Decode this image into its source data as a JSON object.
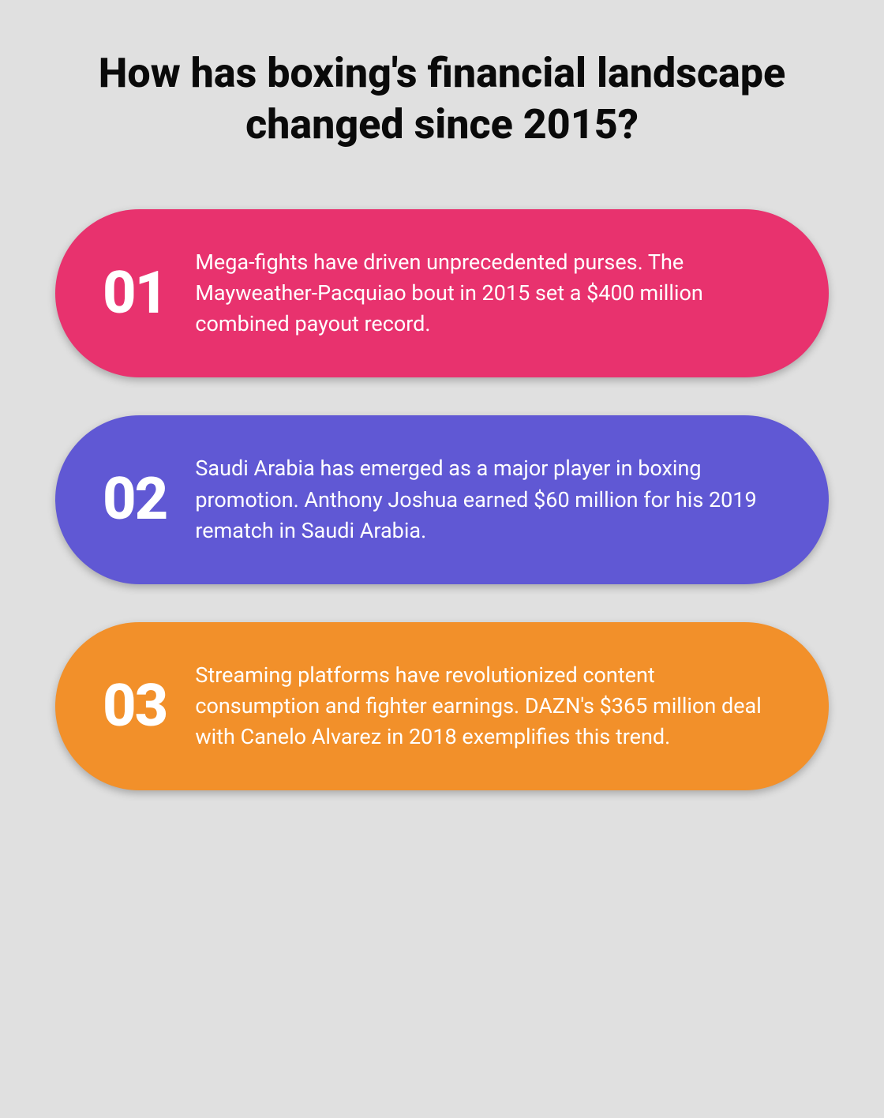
{
  "title": "How has boxing's financial landscape changed since 2015?",
  "title_fontsize": 52,
  "title_fontweight": 800,
  "title_color": "#0a0a0a",
  "background_color": "#e0e0e0",
  "cards": [
    {
      "number": "01",
      "text": "Mega-fights have driven unprecedented purses. The Mayweather-Pacquiao bout in 2015 set a $400 million combined payout record.",
      "background_color": "#e8326e"
    },
    {
      "number": "02",
      "text": "Saudi Arabia has emerged as a major player in boxing promotion. Anthony Joshua earned $60 million for his 2019 rematch in Saudi Arabia.",
      "background_color": "#6058d4"
    },
    {
      "number": "03",
      "text": "Streaming platforms have revolutionized content consumption and fighter earnings. DAZN's $365 million deal with Canelo Alvarez in 2018 exemplifies this trend.",
      "background_color": "#f2902a"
    }
  ],
  "card_number_fontsize": 74,
  "card_number_fontweight": 800,
  "card_number_color": "#ffffff",
  "card_text_fontsize": 27,
  "card_text_color": "#ffffff",
  "card_border_radius": 120,
  "card_shadow": "0 4px 10px rgba(0, 0, 0, 0.25)"
}
